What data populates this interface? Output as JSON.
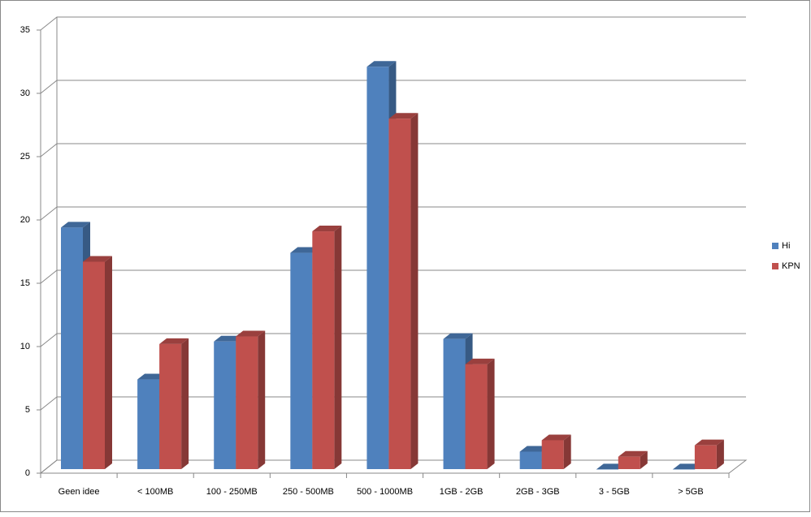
{
  "chart_data": {
    "type": "bar3d",
    "categories": [
      "Geen idee",
      "< 100MB",
      "100 - 250MB",
      "250 - 500MB",
      "500 - 1000MB",
      "1GB - 2GB",
      "2GB - 3GB",
      "3 - 5GB",
      "> 5GB"
    ],
    "series": [
      {
        "name": "Hi",
        "color": "#4f81bd",
        "values": [
          19.4,
          7.4,
          10.4,
          17.4,
          32.1,
          10.6,
          1.7,
          0.3,
          0.3
        ]
      },
      {
        "name": "KPN",
        "color": "#c0504d",
        "values": [
          16.7,
          10.2,
          10.8,
          19.1,
          28.0,
          8.6,
          2.6,
          1.3,
          2.2
        ]
      }
    ],
    "ylim": [
      0,
      35
    ],
    "yticks": [
      0,
      5,
      10,
      15,
      20,
      25,
      30,
      35
    ],
    "grid": true,
    "legend": "right"
  }
}
